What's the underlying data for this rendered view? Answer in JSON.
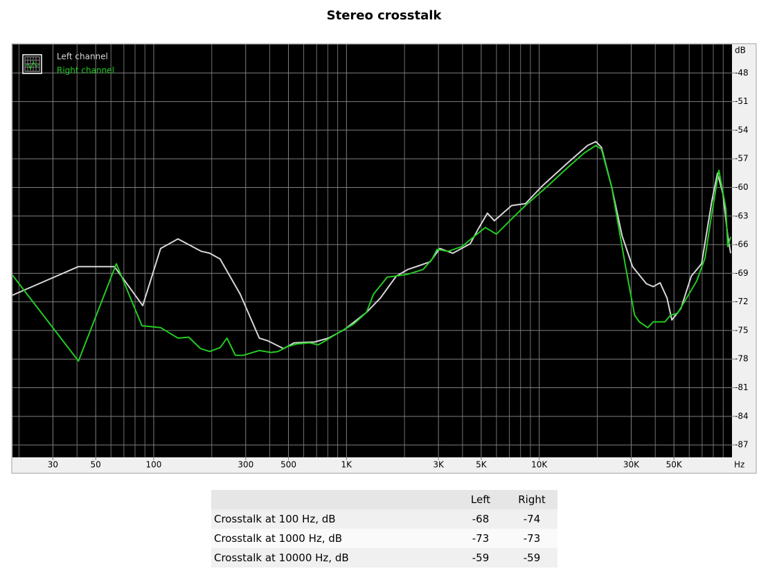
{
  "chart_data": {
    "type": "line",
    "title": "Stereo crosstalk",
    "xlabel": "Hz",
    "ylabel": "dB",
    "xscale": "log",
    "grid": true,
    "minor_grid": true,
    "legend": "upper left",
    "xlim": [
      18.5,
      100000
    ],
    "ylim": [
      -88.3,
      -45
    ],
    "xticks": [
      30,
      50,
      100,
      300,
      500,
      {
        "value": 1000,
        "label": "1K"
      },
      {
        "value": 3000,
        "label": "3K"
      },
      {
        "value": 5000,
        "label": "5K"
      },
      {
        "value": 10000,
        "label": "10K"
      },
      {
        "value": 30000,
        "label": "30K"
      },
      {
        "value": 50000,
        "label": "50K"
      }
    ],
    "yticks": [
      -48,
      -51,
      -54,
      -57,
      -60,
      -63,
      -66,
      -69,
      -72,
      -75,
      -78,
      -81,
      -84,
      -87
    ],
    "series": [
      {
        "name": "Left channel",
        "color": "#d8d8d8",
        "x": [
          18.5,
          40.7,
          62.5,
          87.7,
          108.6,
          133.5,
          176.7,
          195,
          221,
          281,
          353,
          393,
          472,
          535,
          684,
          808,
          975,
          1270,
          1500,
          1812,
          2084,
          2460,
          2716,
          3048,
          3565,
          4385,
          4842,
          5385,
          5848,
          7194,
          8478,
          10430,
          13900,
          17820,
          19680,
          21030,
          23790,
          26920,
          30480,
          35970,
          39000,
          42380,
          46030,
          48750,
          54310,
          61500,
          69560,
          78700,
          84100,
          89800,
          95100,
          98400
        ],
        "values": [
          -71.3,
          -68.3,
          -68.3,
          -72.4,
          -66.4,
          -65.4,
          -66.7,
          -66.9,
          -67.5,
          -71.2,
          -75.8,
          -76.1,
          -76.9,
          -76.3,
          -76.2,
          -75.8,
          -74.9,
          -73.1,
          -71.6,
          -69.3,
          -68.6,
          -68.1,
          -67.8,
          -66.4,
          -66.9,
          -65.9,
          -64.3,
          -62.7,
          -63.5,
          -61.9,
          -61.7,
          -59.8,
          -57.5,
          -55.6,
          -55.2,
          -55.8,
          -60.0,
          -65.1,
          -68.3,
          -70.1,
          -70.4,
          -70.0,
          -71.6,
          -73.9,
          -72.7,
          -69.3,
          -68.0,
          -61.4,
          -58.5,
          -60.7,
          -65.1,
          -66.9
        ]
      },
      {
        "name": "Right channel",
        "color": "#22cc22",
        "x": [
          18.5,
          40.7,
          64,
          86.9,
          108.6,
          133.5,
          152,
          175,
          195,
          221,
          240,
          265,
          292,
          353,
          406,
          442,
          492,
          557,
          645,
          713,
          774,
          914,
          1094,
          1270,
          1380,
          1627,
          1795,
          2084,
          2500,
          2782,
          2950,
          3367,
          3970,
          4757,
          5250,
          5995,
          7194,
          8478,
          10860,
          13900,
          17110,
          19680,
          21030,
          23790,
          28050,
          31240,
          33100,
          36560,
          39000,
          44870,
          47960,
          52100,
          56600,
          65640,
          72470,
          77400,
          85500,
          92900,
          95100,
          98400
        ],
        "values": [
          -69.2,
          -78.2,
          -68.0,
          -74.5,
          -74.7,
          -75.8,
          -75.7,
          -76.9,
          -77.2,
          -76.8,
          -75.8,
          -77.6,
          -77.6,
          -77.1,
          -77.3,
          -77.2,
          -76.7,
          -76.4,
          -76.3,
          -76.5,
          -76.1,
          -75.2,
          -74.3,
          -73.1,
          -71.2,
          -69.4,
          -69.3,
          -69.1,
          -68.6,
          -67.5,
          -66.5,
          -66.7,
          -66.2,
          -64.9,
          -64.2,
          -64.9,
          -63.3,
          -61.9,
          -60.0,
          -58.0,
          -56.4,
          -55.6,
          -56.0,
          -60.0,
          -68.3,
          -73.4,
          -74.1,
          -74.7,
          -74.1,
          -74.1,
          -73.4,
          -73.2,
          -72.0,
          -69.8,
          -67.4,
          -63.6,
          -58.2,
          -62.2,
          -66.2,
          -65.2
        ]
      }
    ]
  },
  "table": {
    "columns": [
      "Left",
      "Right"
    ],
    "rows": [
      [
        "Crosstalk at 100 Hz, dB",
        -68,
        -74
      ],
      [
        "Crosstalk at 1000 Hz, dB",
        -73,
        -73
      ],
      [
        "Crosstalk at 10000 Hz, dB",
        -59,
        -59
      ]
    ]
  }
}
